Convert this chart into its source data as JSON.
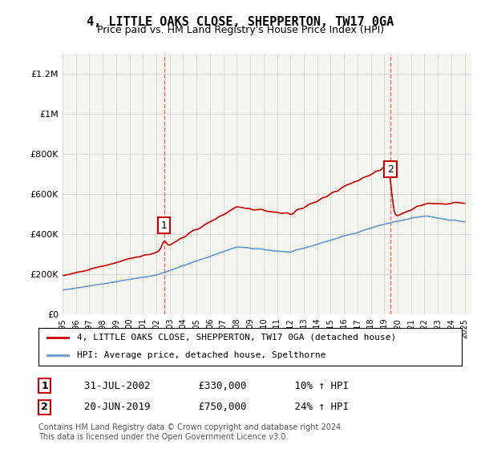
{
  "title": "4, LITTLE OAKS CLOSE, SHEPPERTON, TW17 0GA",
  "subtitle": "Price paid vs. HM Land Registry's House Price Index (HPI)",
  "ylabel_ticks": [
    "£0",
    "£200K",
    "£400K",
    "£600K",
    "£800K",
    "£1M",
    "£1.2M"
  ],
  "ylim": [
    0,
    1300000
  ],
  "xlim_years": [
    1995,
    2025
  ],
  "sale1_year": 2002.58,
  "sale1_price": 330000,
  "sale1_label": "1",
  "sale1_date": "31-JUL-2002",
  "sale1_hpi": "10% ↑ HPI",
  "sale2_year": 2019.46,
  "sale2_price": 750000,
  "sale2_label": "2",
  "sale2_date": "20-JUN-2019",
  "sale2_hpi": "24% ↑ HPI",
  "line_color_price": "#cc0000",
  "line_color_hpi": "#6699cc",
  "dashed_color": "#ff6666",
  "background_color": "#f5f5f0",
  "legend_label1": "4, LITTLE OAKS CLOSE, SHEPPERTON, TW17 0GA (detached house)",
  "legend_label2": "HPI: Average price, detached house, Spelthorne",
  "footnote": "Contains HM Land Registry data © Crown copyright and database right 2024.\nThis data is licensed under the Open Government Licence v3.0.",
  "table_rows": [
    [
      "1",
      "31-JUL-2002",
      "£330,000",
      "10% ↑ HPI"
    ],
    [
      "2",
      "20-JUN-2019",
      "£750,000",
      "24% ↑ HPI"
    ]
  ]
}
